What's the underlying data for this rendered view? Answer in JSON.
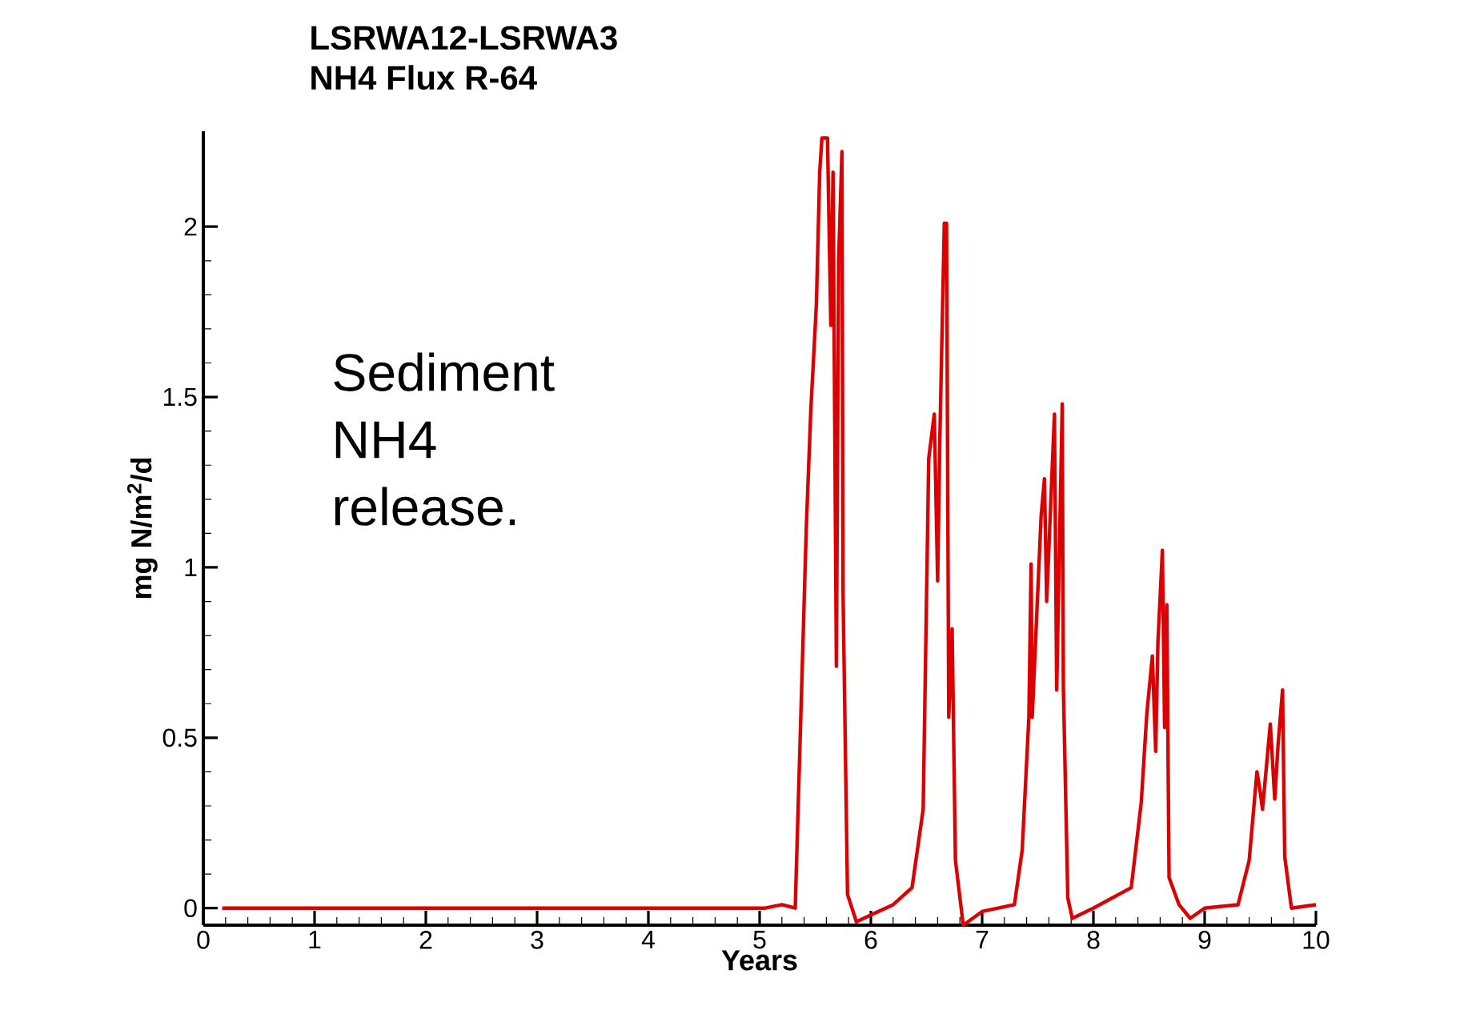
{
  "chart_data": {
    "type": "line",
    "title": "LSRWA12-LSRWA3",
    "subtitle": "NH4 Flux R-64",
    "xlabel": "Years",
    "ylabel": "mg N/m$^{2}$/d",
    "annotations": [
      "Sediment NH4 release."
    ],
    "xlim": [
      0,
      10
    ],
    "ylim": [
      -0.05,
      2.28
    ],
    "xticks": [
      0,
      1,
      2,
      3,
      4,
      5,
      6,
      7,
      8,
      9,
      10
    ],
    "yticks": [
      0,
      0.5,
      1,
      1.5,
      2
    ],
    "series": [
      {
        "color": "#dd0000",
        "x": [
          0.17,
          5.05,
          5.2,
          5.32,
          5.42,
          5.46,
          5.51,
          5.54,
          5.56,
          5.61,
          5.64,
          5.66,
          5.69,
          5.71,
          5.74,
          5.75,
          5.79,
          5.87,
          6.0,
          6.2,
          6.37,
          6.47,
          6.52,
          6.57,
          6.6,
          6.62,
          6.66,
          6.68,
          6.7,
          6.73,
          6.76,
          6.83,
          7.0,
          7.29,
          7.36,
          7.42,
          7.44,
          7.45,
          7.53,
          7.56,
          7.58,
          7.65,
          7.67,
          7.72,
          7.73,
          7.77,
          7.81,
          8.0,
          8.34,
          8.43,
          8.48,
          8.53,
          8.56,
          8.58,
          8.62,
          8.64,
          8.66,
          8.68,
          8.77,
          8.87,
          9.0,
          9.3,
          9.4,
          9.47,
          9.5,
          9.52,
          9.59,
          9.63,
          9.66,
          9.7,
          9.72,
          9.78,
          10.0
        ],
        "values": [
          0,
          0,
          0.01,
          0,
          1.12,
          1.46,
          1.77,
          2.16,
          2.26,
          2.26,
          1.71,
          2.16,
          0.71,
          1.9,
          2.22,
          0.92,
          0.04,
          -0.04,
          -0.02,
          0.01,
          0.06,
          0.29,
          1.32,
          1.45,
          0.96,
          1.38,
          2.01,
          2.01,
          0.56,
          0.82,
          0.14,
          -0.05,
          -0.01,
          0.01,
          0.17,
          0.56,
          1.01,
          0.56,
          1.15,
          1.26,
          0.9,
          1.45,
          0.64,
          1.48,
          0.65,
          0.03,
          -0.03,
          0,
          0.06,
          0.31,
          0.57,
          0.74,
          0.46,
          0.78,
          1.05,
          0.53,
          0.89,
          0.09,
          0.01,
          -0.03,
          0,
          0.01,
          0.14,
          0.4,
          0.34,
          0.29,
          0.54,
          0.32,
          0.48,
          0.64,
          0.15,
          0,
          0.01
        ]
      }
    ]
  }
}
